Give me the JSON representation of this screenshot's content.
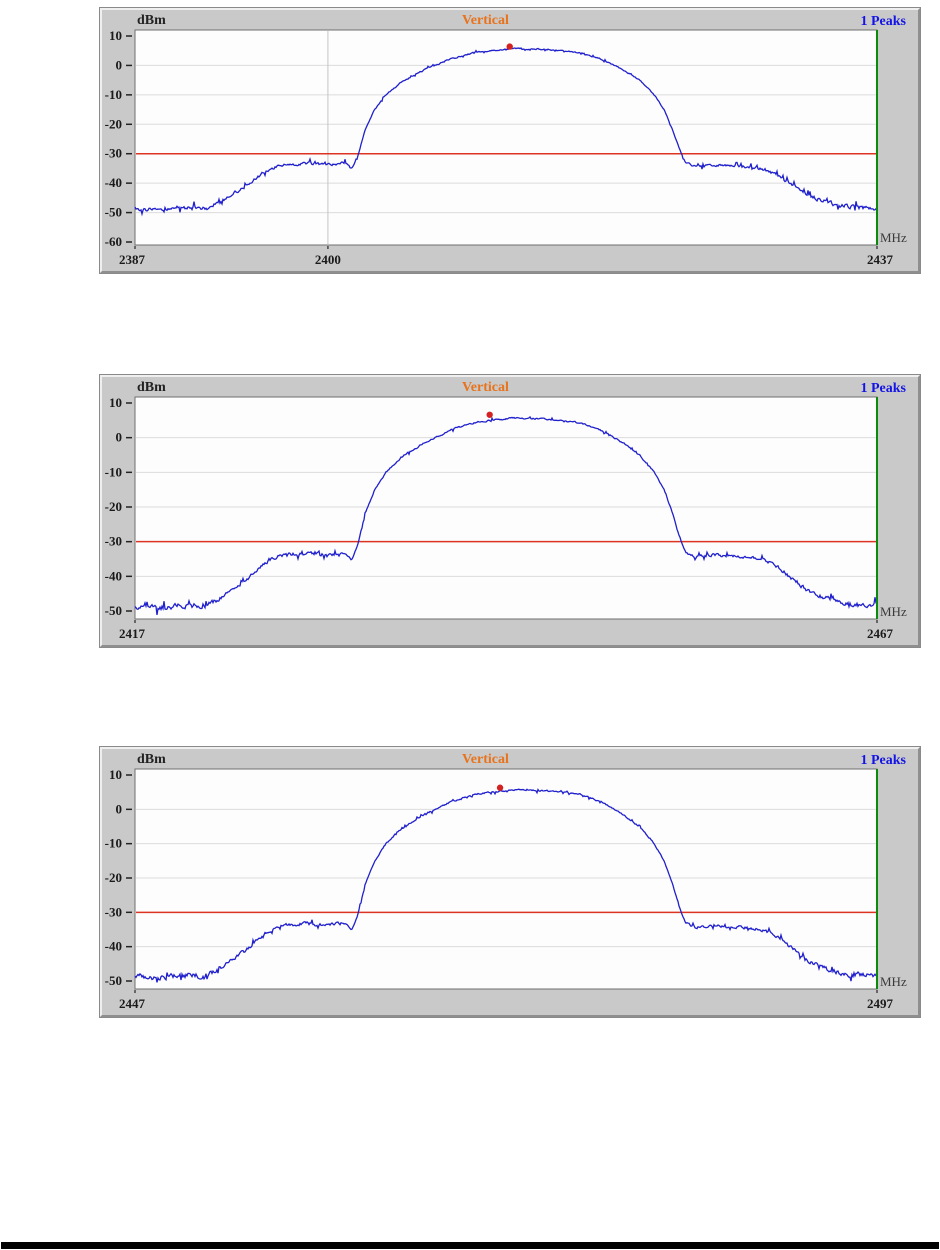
{
  "page": {
    "footer_rule_color": "#000000",
    "background_color": "#ffffff"
  },
  "colors": {
    "panel_bg": "#c9c9c9",
    "plot_bg": "#fdfdfd",
    "grid": "#dcdcdc",
    "trace": "#2020cc",
    "threshold": "#dd3322",
    "right_border_green": "#0b8a0b",
    "title_orange": "#e8731c",
    "peaks_blue": "#1414e6",
    "axis_text": "#1a1a1a",
    "mhz_text": "#3a3a3a",
    "peak_marker": "#d42222"
  },
  "trace_shape_breakpoints": [
    [
      0.0,
      -48.5,
      1.3
    ],
    [
      0.03,
      -49.2,
      1.3
    ],
    [
      0.07,
      -48.3,
      1.3
    ],
    [
      0.095,
      -48.8,
      1.3
    ],
    [
      0.12,
      -45.5,
      1.0
    ],
    [
      0.15,
      -41.0,
      0.9
    ],
    [
      0.175,
      -36.0,
      0.8
    ],
    [
      0.195,
      -34.0,
      0.8
    ],
    [
      0.23,
      -33.2,
      0.8
    ],
    [
      0.26,
      -33.8,
      0.8
    ],
    [
      0.283,
      -33.0,
      0.8
    ],
    [
      0.292,
      -35.2,
      0.4
    ],
    [
      0.3,
      -31.0,
      0.3
    ],
    [
      0.31,
      -22.0,
      0.3
    ],
    [
      0.322,
      -15.5,
      0.3
    ],
    [
      0.338,
      -10.0,
      0.35
    ],
    [
      0.36,
      -5.5,
      0.4
    ],
    [
      0.39,
      -1.5,
      0.4
    ],
    [
      0.425,
      2.2,
      0.4
    ],
    [
      0.46,
      4.5,
      0.35
    ],
    [
      0.51,
      5.7,
      0.35
    ],
    [
      0.56,
      5.3,
      0.35
    ],
    [
      0.6,
      4.3,
      0.35
    ],
    [
      0.63,
      2.0,
      0.35
    ],
    [
      0.658,
      -1.5,
      0.35
    ],
    [
      0.68,
      -5.0,
      0.3
    ],
    [
      0.7,
      -10.0,
      0.3
    ],
    [
      0.713,
      -15.0,
      0.3
    ],
    [
      0.724,
      -21.5,
      0.3
    ],
    [
      0.733,
      -28.0,
      0.35
    ],
    [
      0.742,
      -33.0,
      0.5
    ],
    [
      0.755,
      -34.5,
      0.7
    ],
    [
      0.78,
      -33.8,
      0.7
    ],
    [
      0.81,
      -34.2,
      0.7
    ],
    [
      0.84,
      -34.8,
      0.7
    ],
    [
      0.862,
      -36.5,
      0.8
    ],
    [
      0.885,
      -40.5,
      0.9
    ],
    [
      0.91,
      -44.5,
      1.1
    ],
    [
      0.94,
      -47.0,
      1.2
    ],
    [
      0.97,
      -48.3,
      1.3
    ],
    [
      1.0,
      -48.2,
      1.3
    ]
  ],
  "chart_data": [
    {
      "type": "line",
      "title": "Vertical",
      "unit_label": "dBm",
      "x_unit_label": "MHz",
      "peaks_label": "1 Peaks",
      "x_range": [
        2387,
        2437
      ],
      "x_ticks": [
        {
          "label": "2387",
          "frac": 0
        },
        {
          "label": "2400",
          "frac": 0.26,
          "gridline": true
        },
        {
          "label": "2437",
          "frac": 1
        }
      ],
      "y_ticks": [
        10,
        0,
        -10,
        -20,
        -30,
        -40,
        -50,
        -60
      ],
      "ylim": [
        -60,
        10
      ],
      "threshold_dbm": -30,
      "peak_marker": {
        "frac": 0.505,
        "dbm": 6.4
      },
      "signal_summary": {
        "noise_floor_dbm": -49,
        "shoulder_dbm": -34,
        "flat_top_dbm": 5.5
      },
      "noise_seed": 7
    },
    {
      "type": "line",
      "title": "Vertical",
      "unit_label": "dBm",
      "x_unit_label": "MHz",
      "peaks_label": "1 Peaks",
      "x_range": [
        2417,
        2467
      ],
      "x_ticks": [
        {
          "label": "2417",
          "frac": 0
        },
        {
          "label": "2467",
          "frac": 1
        }
      ],
      "y_ticks": [
        10,
        0,
        -10,
        -20,
        -30,
        -40,
        -50
      ],
      "ylim": [
        -50,
        10
      ],
      "threshold_dbm": -30,
      "peak_marker": {
        "frac": 0.478,
        "dbm": 6.6
      },
      "signal_summary": {
        "noise_floor_dbm": -49,
        "shoulder_dbm": -34,
        "flat_top_dbm": 5.5
      },
      "noise_seed": 13
    },
    {
      "type": "line",
      "title": "Vertical",
      "unit_label": "dBm",
      "x_unit_label": "MHz",
      "peaks_label": "1 Peaks",
      "x_range": [
        2447,
        2497
      ],
      "x_ticks": [
        {
          "label": "2447",
          "frac": 0
        },
        {
          "label": "2497",
          "frac": 1
        }
      ],
      "y_ticks": [
        10,
        0,
        -10,
        -20,
        -30,
        -40,
        -50
      ],
      "ylim": [
        -50,
        10
      ],
      "threshold_dbm": -30,
      "peak_marker": {
        "frac": 0.492,
        "dbm": 6.3
      },
      "signal_summary": {
        "noise_floor_dbm": -49,
        "shoulder_dbm": -34,
        "flat_top_dbm": 5.5
      },
      "noise_seed": 29
    }
  ]
}
